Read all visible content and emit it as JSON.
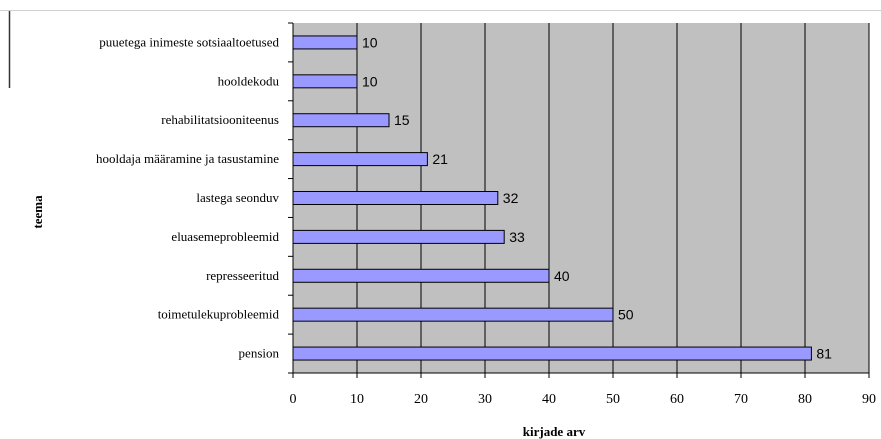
{
  "chart_data": {
    "type": "bar",
    "orientation": "horizontal",
    "title": "",
    "xlabel": "kirjade arv",
    "ylabel": "teema",
    "categories": [
      "puuetega inimeste sotsiaaltoetused",
      "hooldekodu",
      "rehabilitatsiooniteenus",
      "hooldaja määramine ja tasustamine",
      "lastega seonduv",
      "eluasemeprobleemid",
      "represseeritud",
      "toimetulekuprobleemid",
      "pension"
    ],
    "values": [
      10,
      10,
      15,
      21,
      32,
      33,
      40,
      50,
      81
    ],
    "xlim": [
      0,
      90
    ],
    "xticks": [
      "0",
      "10",
      "20",
      "30",
      "40",
      "50",
      "60",
      "70",
      "80",
      "90"
    ],
    "grid": true,
    "data_labels": true,
    "colors": {
      "bar_fill": "#9999ff",
      "bar_stroke": "#000000",
      "plot_background": "#c0c0c0",
      "gridline": "#000000"
    }
  }
}
